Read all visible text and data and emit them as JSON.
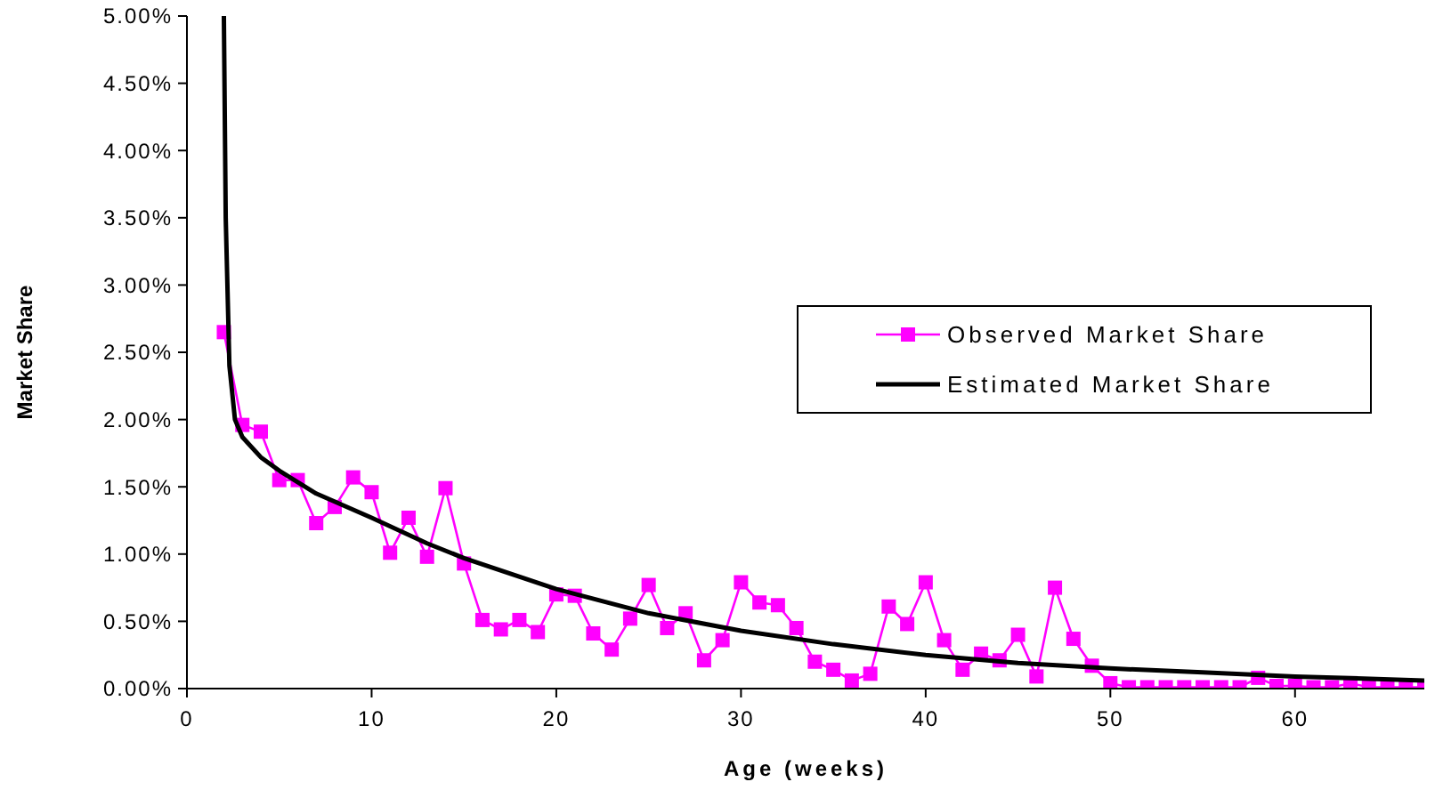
{
  "chart_data": {
    "type": "line",
    "xlabel": "Age (weeks)",
    "ylabel": "Market Share",
    "xlim": [
      0,
      67
    ],
    "xticks": [
      0,
      10,
      20,
      30,
      40,
      50,
      60
    ],
    "ylim": [
      0,
      5
    ],
    "yticks": [
      {
        "value": 0,
        "label": "0.00%"
      },
      {
        "value": 0.5,
        "label": "0.50%"
      },
      {
        "value": 1,
        "label": "1.00%"
      },
      {
        "value": 1.5,
        "label": "1.50%"
      },
      {
        "value": 2,
        "label": "2.00%"
      },
      {
        "value": 2.5,
        "label": "2.50%"
      },
      {
        "value": 3,
        "label": "3.00%"
      },
      {
        "value": 3.5,
        "label": "3.50%"
      },
      {
        "value": 4,
        "label": "4.00%"
      },
      {
        "value": 4.5,
        "label": "4.50%"
      },
      {
        "value": 5,
        "label": "5.00%"
      }
    ],
    "grid": false,
    "legend": "right",
    "series": [
      {
        "name": "Observed Market Share",
        "color": "#ff00ff",
        "marker": "square",
        "x": [
          2,
          3,
          4,
          5,
          6,
          7,
          8,
          9,
          10,
          11,
          12,
          13,
          14,
          15,
          16,
          17,
          18,
          19,
          20,
          21,
          22,
          23,
          24,
          25,
          26,
          27,
          28,
          29,
          30,
          31,
          32,
          33,
          34,
          35,
          36,
          37,
          38,
          39,
          40,
          41,
          42,
          43,
          44,
          45,
          46,
          47,
          48,
          49,
          50,
          51,
          52,
          53,
          54,
          55,
          56,
          57,
          58,
          59,
          60,
          61,
          62,
          63,
          64,
          65,
          66,
          67
        ],
        "values": [
          2.65,
          1.96,
          1.91,
          1.55,
          1.55,
          1.23,
          1.35,
          1.57,
          1.46,
          1.01,
          1.27,
          0.98,
          1.49,
          0.93,
          0.51,
          0.44,
          0.51,
          0.42,
          0.7,
          0.69,
          0.41,
          0.29,
          0.52,
          0.77,
          0.45,
          0.56,
          0.21,
          0.36,
          0.79,
          0.64,
          0.62,
          0.45,
          0.2,
          0.14,
          0.06,
          0.11,
          0.61,
          0.48,
          0.79,
          0.36,
          0.14,
          0.26,
          0.21,
          0.4,
          0.09,
          0.75,
          0.37,
          0.17,
          0.04,
          0.01,
          0.01,
          0.01,
          0.01,
          0.01,
          0.01,
          0.01,
          0.08,
          0.02,
          0.02,
          0.01,
          0.01,
          0.04,
          0.01,
          0.01,
          0.01,
          0.01
        ]
      },
      {
        "name": "Estimated Market Share",
        "color": "#000000",
        "marker": "none",
        "x": [
          2,
          2.1,
          2.3,
          2.6,
          3,
          4,
          5,
          7,
          10,
          13,
          15,
          20,
          25,
          30,
          35,
          40,
          45,
          50,
          55,
          60,
          67
        ],
        "values": [
          5,
          3.5,
          2.4,
          2,
          1.87,
          1.72,
          1.62,
          1.45,
          1.27,
          1.08,
          0.97,
          0.74,
          0.56,
          0.43,
          0.33,
          0.25,
          0.19,
          0.15,
          0.12,
          0.09,
          0.06
        ]
      }
    ]
  }
}
